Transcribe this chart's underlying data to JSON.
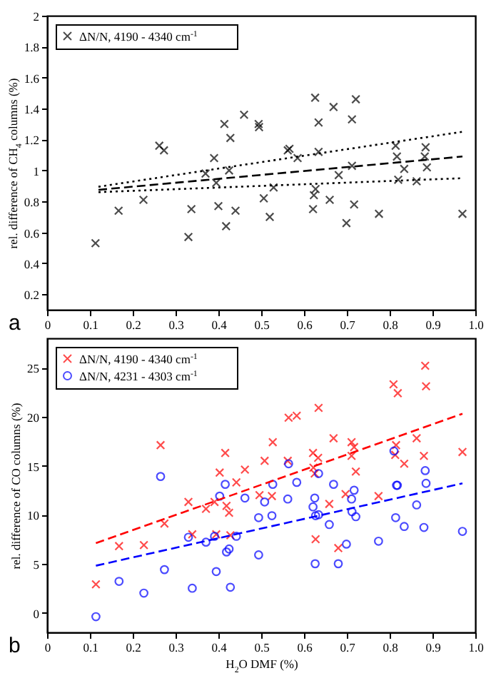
{
  "chart_data": [
    {
      "type": "scatter",
      "ylabel": "rel. difference of CH$_{4}$ columns (%)",
      "annotations": [
        "a"
      ],
      "xlim": [
        0,
        1
      ],
      "xticks": [
        0,
        0.1,
        0.2,
        0.3,
        0.4,
        0.5,
        0.6,
        0.7,
        0.8,
        0.9,
        {
          "value": 1,
          "label": "1.0"
        }
      ],
      "ylim": [
        0.1,
        2
      ],
      "yticks": [
        0.2,
        0.4,
        0.6,
        0.8,
        1,
        1.2,
        1.4,
        1.6,
        1.8,
        2
      ],
      "legend": "top left",
      "series": [
        {
          "name": "ΔN/N, 4190 - 4340 cm$^{-1}$",
          "color": "#000000",
          "marker": "cross",
          "x": [
            0.113,
            0.167,
            0.225,
            0.262,
            0.273,
            0.33,
            0.337,
            0.37,
            0.39,
            0.395,
            0.4,
            0.414,
            0.418,
            0.425,
            0.428,
            0.44,
            0.46,
            0.494,
            0.495,
            0.506,
            0.52,
            0.529,
            0.562,
            0.566,
            0.585,
            0.621,
            0.623,
            0.627,
            0.626,
            0.634,
            0.634,
            0.66,
            0.669,
            0.681,
            0.699,
            0.712,
            0.712,
            0.717,
            0.721,
            0.775,
            0.814,
            0.817,
            0.82,
            0.834,
            0.863,
            0.882,
            0.884,
            0.887,
            0.97
          ],
          "values": [
            0.53,
            0.74,
            0.81,
            1.16,
            1.13,
            0.57,
            0.75,
            0.98,
            1.08,
            0.92,
            0.77,
            1.3,
            0.64,
            1.0,
            1.21,
            0.74,
            1.36,
            1.3,
            1.28,
            0.82,
            0.7,
            0.89,
            1.13,
            1.14,
            1.08,
            0.75,
            0.84,
            0.88,
            1.47,
            1.12,
            1.31,
            0.81,
            1.41,
            0.97,
            0.66,
            1.33,
            1.03,
            0.78,
            1.46,
            0.72,
            1.16,
            1.09,
            0.94,
            1.01,
            0.93,
            1.09,
            1.15,
            1.02,
            0.72
          ]
        },
        {
          "type": "line",
          "color": "#000000",
          "line_style": "dashed",
          "x": [
            0.12,
            0.97
          ],
          "values": [
            0.875,
            1.09
          ]
        },
        {
          "type": "line",
          "color": "#000000",
          "line_style": "dotted",
          "x": [
            0.12,
            0.97
          ],
          "values": [
            0.895,
            1.25
          ]
        },
        {
          "type": "line",
          "color": "#000000",
          "line_style": "dotted",
          "x": [
            0.12,
            0.97
          ],
          "values": [
            0.86,
            0.95
          ]
        }
      ]
    },
    {
      "type": "scatter",
      "xlabel": "H$_{2}$O DMF (%)",
      "ylabel": "rel. difference of CO columns (%)",
      "annotations": [
        "b"
      ],
      "xlim": [
        0,
        1
      ],
      "xticks": [
        0,
        0.1,
        0.2,
        0.3,
        0.4,
        0.5,
        0.6,
        0.7,
        0.8,
        0.9,
        {
          "value": 1,
          "label": "1.0"
        }
      ],
      "ylim": [
        -2,
        28
      ],
      "yticks": [
        0,
        5,
        10,
        15,
        20,
        25
      ],
      "legend": "top left",
      "series": [
        {
          "name": "ΔN/N, 4190 - 4340 cm$^{-1}$",
          "color": "#ff0000",
          "marker": "cross",
          "x": [
            0.114,
            0.168,
            0.226,
            0.265,
            0.274,
            0.33,
            0.339,
            0.371,
            0.391,
            0.395,
            0.403,
            0.416,
            0.419,
            0.425,
            0.428,
            0.442,
            0.462,
            0.496,
            0.508,
            0.525,
            0.527,
            0.562,
            0.564,
            0.583,
            0.621,
            0.622,
            0.625,
            0.627,
            0.633,
            0.634,
            0.659,
            0.669,
            0.68,
            0.697,
            0.711,
            0.711,
            0.717,
            0.721,
            0.774,
            0.809,
            0.813,
            0.815,
            0.819,
            0.834,
            0.863,
            0.88,
            0.883,
            0.885,
            0.97
          ],
          "values": [
            2.9,
            6.8,
            6.9,
            17.1,
            9.1,
            11.3,
            8.0,
            10.6,
            11.3,
            8.0,
            14.3,
            16.3,
            10.9,
            10.2,
            7.9,
            13.3,
            14.6,
            12.0,
            15.5,
            11.9,
            17.4,
            15.5,
            19.9,
            20.1,
            16.3,
            14.8,
            14.2,
            7.5,
            15.8,
            20.9,
            11.1,
            17.8,
            6.6,
            12.1,
            17.4,
            16.0,
            16.9,
            14.4,
            11.9,
            23.3,
            16.1,
            17.1,
            22.4,
            15.2,
            17.8,
            16.0,
            25.2,
            23.1,
            16.4
          ]
        },
        {
          "name": "ΔN/N, 4231 - 4303 cm$^{-1}$",
          "color": "#0000ff",
          "marker": "circle",
          "x": [
            0.114,
            0.168,
            0.226,
            0.265,
            0.274,
            0.33,
            0.339,
            0.371,
            0.391,
            0.395,
            0.403,
            0.416,
            0.419,
            0.425,
            0.428,
            0.442,
            0.462,
            0.494,
            0.494,
            0.508,
            0.525,
            0.527,
            0.562,
            0.564,
            0.583,
            0.621,
            0.625,
            0.627,
            0.626,
            0.634,
            0.634,
            0.659,
            0.669,
            0.68,
            0.699,
            0.711,
            0.712,
            0.717,
            0.721,
            0.774,
            0.81,
            0.814,
            0.816,
            0.818,
            0.834,
            0.863,
            0.88,
            0.883,
            0.885,
            0.97
          ],
          "values": [
            -0.4,
            3.2,
            2.0,
            13.9,
            4.4,
            7.7,
            2.5,
            7.2,
            7.8,
            4.2,
            11.9,
            13.1,
            6.2,
            6.5,
            2.6,
            7.8,
            11.7,
            9.7,
            5.9,
            11.3,
            9.9,
            13.1,
            11.6,
            15.2,
            13.3,
            10.8,
            11.7,
            9.9,
            5.0,
            14.2,
            10.0,
            9.0,
            13.1,
            5.0,
            7.0,
            11.6,
            10.3,
            12.5,
            9.8,
            7.3,
            16.5,
            9.7,
            13.0,
            13.0,
            8.8,
            11.0,
            8.7,
            14.5,
            13.2,
            8.3
          ]
        },
        {
          "type": "line",
          "color": "#ff0000",
          "line_style": "dashed",
          "x": [
            0.114,
            0.97
          ],
          "values": [
            7.1,
            20.3
          ]
        },
        {
          "type": "line",
          "color": "#0000ff",
          "line_style": "dashed",
          "x": [
            0.114,
            0.97
          ],
          "values": [
            4.8,
            13.2
          ]
        }
      ]
    }
  ]
}
